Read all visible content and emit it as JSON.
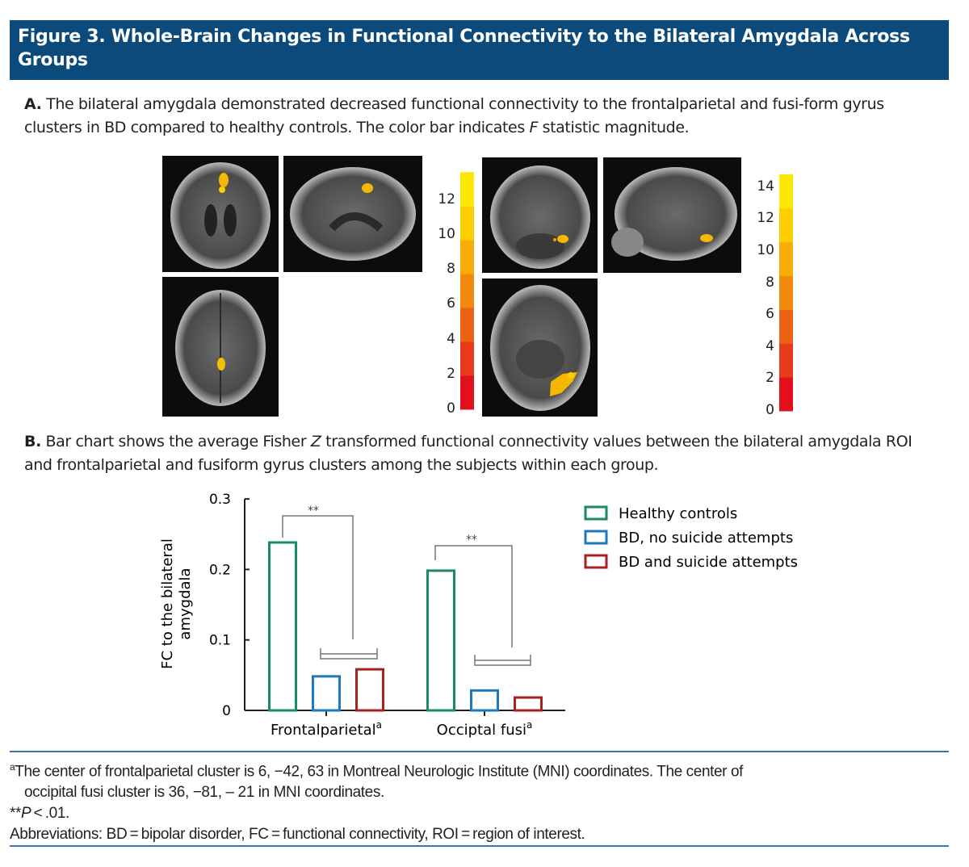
{
  "header": {
    "title": "Figure 3. Whole-Brain Changes in Functional Connectivity to the Bilateral Amygdala Across Groups",
    "color": "#0b4a7a"
  },
  "panel_a": {
    "label": "A.",
    "text_before": " The bilateral amygdala demonstrated decreased functional connectivity to the frontalparietal and fusi-form gyrus clusters in BD compared to healthy controls. The color bar indicates ",
    "text_italic": "F",
    "text_after": " statistic magnitude.",
    "colorbar_left": {
      "ticks": [
        "0",
        "2",
        "4",
        "6",
        "8",
        "10",
        "12"
      ]
    },
    "colorbar_right": {
      "ticks": [
        "0",
        "2",
        "4",
        "6",
        "8",
        "10",
        "12",
        "14"
      ]
    },
    "colorbar_colors": [
      "#e2101c",
      "#e63a1a",
      "#ec6112",
      "#f2890c",
      "#f8ac05",
      "#fccd00",
      "#fde800"
    ]
  },
  "panel_b": {
    "label": "B.",
    "text_before": " Bar chart shows the average Fisher ",
    "text_italic": "Z",
    "text_after": " transformed functional connectivity values between the bilateral amygdala ROI and frontalparietal and fusiform gyrus clusters among the subjects within each group."
  },
  "chart_data": {
    "type": "bar",
    "categories": [
      "Frontalparietal",
      "Occiptal fusi"
    ],
    "category_superscript": "a",
    "ylabel_line1": "FC to the bilateral",
    "ylabel_line2": "amygdala",
    "ylim": [
      0,
      0.3
    ],
    "yticks": [
      "0",
      "0.1",
      "0.2",
      "0.3"
    ],
    "series": [
      {
        "name": "Healthy controls",
        "color": "#1a8a6a",
        "values": [
          0.24,
          0.2
        ]
      },
      {
        "name": "BD, no suicide attempts",
        "color": "#1e78be",
        "values": [
          0.05,
          0.03
        ]
      },
      {
        "name": "BD and suicide attempts",
        "color": "#a8201f",
        "values": [
          0.06,
          0.02
        ]
      }
    ],
    "significance_label": "**",
    "legend_position": "top-right",
    "grid": false
  },
  "footnotes": {
    "a_mark": "a",
    "a_line1": "The center of frontalparietal cluster is 6, −42, 63 in Montreal Neurologic Institute (MNI) coordinates. The center of",
    "a_line2": "occipital fusi cluster is 36, −81, – 21 in MNI coordinates.",
    "p_stars": "**",
    "p_italic": "P",
    "p_rest": " < .01.",
    "abbreviations": "Abbreviations: BD = bipolar disorder, FC = functional connectivity, ROI = region of interest."
  }
}
